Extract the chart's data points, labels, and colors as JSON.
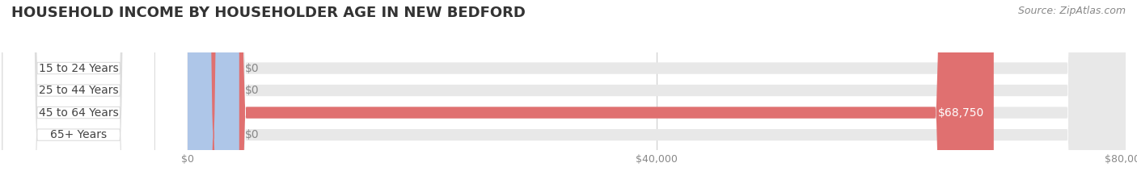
{
  "title": "HOUSEHOLD INCOME BY HOUSEHOLDER AGE IN NEW BEDFORD",
  "source": "Source: ZipAtlas.com",
  "categories": [
    "15 to 24 Years",
    "25 to 44 Years",
    "45 to 64 Years",
    "65+ Years"
  ],
  "values": [
    0,
    0,
    68750,
    0
  ],
  "bar_colors": [
    "#f48fb1",
    "#ffcc99",
    "#e07070",
    "#aec6e8"
  ],
  "label_texts": [
    "$0",
    "$0",
    "$68,750",
    "$0"
  ],
  "value_label_colors": [
    "#888888",
    "#888888",
    "#ffffff",
    "#888888"
  ],
  "xlim": [
    0,
    80000
  ],
  "xtick_values": [
    0,
    40000,
    80000
  ],
  "xtick_labels": [
    "$0",
    "$40,000",
    "$80,000"
  ],
  "title_fontsize": 13,
  "source_fontsize": 9,
  "cat_fontsize": 10,
  "val_fontsize": 10,
  "tick_fontsize": 9,
  "background_color": "#ffffff",
  "bar_height": 0.52,
  "bg_bar_color": "#e8e8e8"
}
